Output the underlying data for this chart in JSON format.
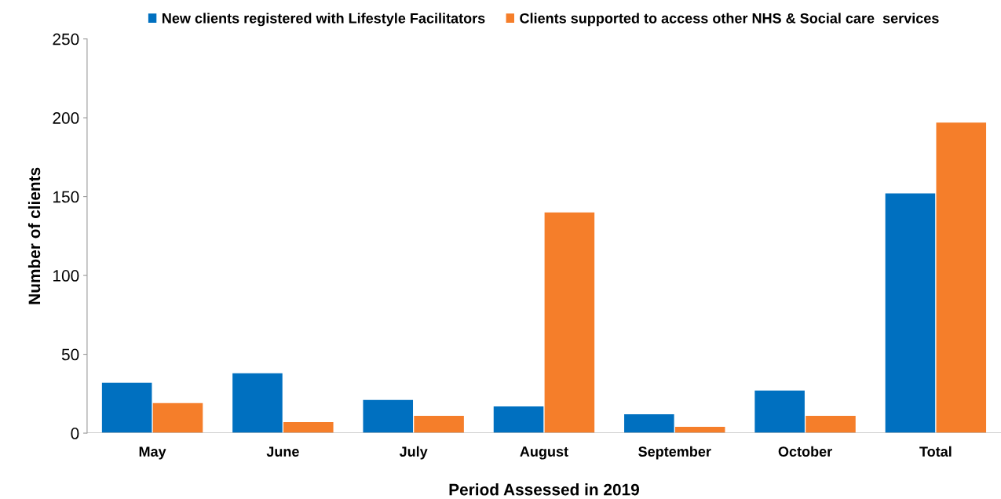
{
  "chart_data": {
    "type": "bar",
    "xlabel": "Period Assessed in 2019",
    "ylabel": "Number of clients",
    "categories": [
      "May",
      "June",
      "July",
      "August",
      "September",
      "October",
      "Total"
    ],
    "series": [
      {
        "name": "New clients registered with Lifestyle Facilitators",
        "color": "#0070c0",
        "values": [
          32,
          38,
          21,
          17,
          12,
          27,
          152
        ]
      },
      {
        "name": "Clients supported to access other NHS & Social care  services",
        "color": "#f57e2a",
        "values": [
          19,
          7,
          11,
          140,
          4,
          11,
          197
        ]
      }
    ],
    "ylim": [
      0,
      250
    ],
    "yticks": [
      0,
      50,
      100,
      150,
      200,
      250
    ],
    "grid": false,
    "legend": "top"
  }
}
